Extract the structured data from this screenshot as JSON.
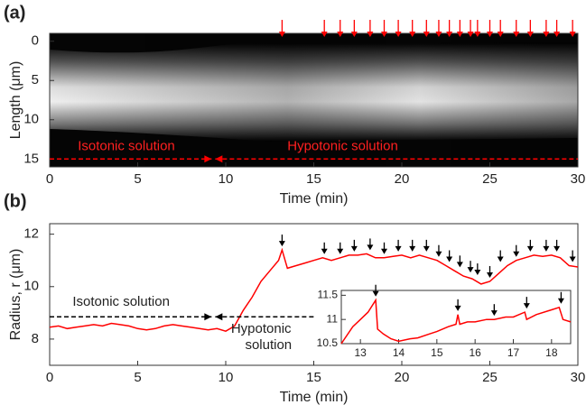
{
  "chart_data": [
    {
      "type": "image",
      "panel_label": "(a)",
      "xlabel": "Time (min)",
      "ylabel": "Length (μm)",
      "xlim": [
        0,
        30
      ],
      "xticks": [
        0,
        5,
        10,
        15,
        20,
        25,
        30
      ],
      "ylim": [
        -1,
        16
      ],
      "yticks": [
        0,
        5,
        10,
        15
      ],
      "y_reversed": true,
      "arrows": {
        "color": "#ff0000",
        "x": [
          13.2,
          15.6,
          16.5,
          17.3,
          18.2,
          19.0,
          19.8,
          20.6,
          21.4,
          22.1,
          22.7,
          23.3,
          23.9,
          24.3,
          25.0,
          25.6,
          26.5,
          27.3,
          28.2,
          28.8,
          29.7
        ]
      },
      "divider": {
        "y": 15,
        "x": 9.3,
        "color": "#ff0000"
      },
      "annotations": [
        "Isotonic solution",
        "Hypotonic solution"
      ]
    },
    {
      "type": "line",
      "panel_label": "(b)",
      "xlabel": "Time (min)",
      "ylabel": "Radius, r (μm)",
      "xlim": [
        0,
        30
      ],
      "xticks": [
        0,
        5,
        10,
        15,
        20,
        25,
        30
      ],
      "ylim": [
        7,
        12.4
      ],
      "yticks": [
        8,
        10,
        12
      ],
      "color": "#ff0000",
      "x": [
        0,
        0.5,
        1,
        1.5,
        2,
        2.5,
        3,
        3.5,
        4,
        4.5,
        5,
        5.5,
        6,
        6.5,
        7,
        7.5,
        8,
        8.5,
        9,
        9.5,
        10,
        10.5,
        11,
        11.5,
        12,
        12.5,
        13,
        13.2,
        13.5,
        14,
        14.5,
        15,
        15.5,
        16,
        16.5,
        17,
        17.5,
        18,
        18.5,
        19,
        19.5,
        20,
        20.5,
        21,
        21.5,
        22,
        22.5,
        23,
        23.5,
        24,
        24.5,
        25,
        25.5,
        26,
        26.5,
        27,
        27.5,
        28,
        28.5,
        29,
        29.5,
        30
      ],
      "values": [
        8.45,
        8.5,
        8.4,
        8.45,
        8.5,
        8.55,
        8.5,
        8.6,
        8.55,
        8.5,
        8.4,
        8.35,
        8.4,
        8.5,
        8.55,
        8.5,
        8.45,
        8.4,
        8.35,
        8.4,
        8.3,
        8.5,
        9.1,
        9.6,
        10.2,
        10.6,
        11.0,
        11.4,
        10.7,
        10.8,
        10.9,
        11.0,
        11.1,
        11.0,
        11.1,
        11.2,
        11.2,
        11.25,
        11.1,
        11.1,
        11.15,
        11.2,
        11.1,
        11.2,
        11.1,
        11.0,
        10.8,
        10.6,
        10.4,
        10.3,
        10.1,
        10.2,
        10.5,
        10.8,
        11.0,
        11.1,
        11.2,
        11.15,
        11.2,
        11.1,
        10.8,
        10.75
      ],
      "arrows": {
        "color": "#000000",
        "x": [
          13.2,
          15.6,
          16.5,
          17.3,
          18.2,
          19.0,
          19.8,
          20.6,
          21.4,
          22.1,
          22.7,
          23.3,
          23.9,
          24.3,
          25.0,
          25.6,
          26.5,
          27.3,
          28.2,
          28.8,
          29.7
        ]
      },
      "divider": {
        "y": 8.85,
        "x": 9.3,
        "color": "#000000",
        "x_end": 15
      },
      "annotations": [
        "Isotonic solution",
        "Hypotonic",
        "solution"
      ]
    },
    {
      "type": "line",
      "inset": true,
      "color": "#ff0000",
      "xlim": [
        12.5,
        18.5
      ],
      "xticks": [
        13,
        14,
        15,
        16,
        17,
        18
      ],
      "ylim": [
        10.5,
        11.6
      ],
      "yticks": [
        10.5,
        11,
        11.5
      ],
      "x": [
        12.5,
        12.8,
        13,
        13.2,
        13.4,
        13.45,
        13.6,
        13.8,
        14,
        14.3,
        14.5,
        14.8,
        15,
        15.3,
        15.5,
        15.55,
        15.6,
        15.8,
        16,
        16.3,
        16.5,
        16.8,
        17,
        17.3,
        17.35,
        17.6,
        18,
        18.2,
        18.3,
        18.5
      ],
      "values": [
        10.5,
        10.85,
        11.0,
        11.15,
        11.4,
        10.8,
        10.7,
        10.6,
        10.55,
        10.6,
        10.62,
        10.7,
        10.75,
        10.85,
        10.9,
        11.1,
        10.9,
        10.95,
        10.95,
        11.0,
        11.0,
        11.05,
        11.05,
        11.15,
        11.0,
        11.1,
        11.2,
        11.25,
        11.0,
        10.95
      ],
      "arrows": {
        "color": "#000000",
        "x": [
          13.4,
          15.55,
          16.5,
          17.35,
          18.25
        ]
      }
    }
  ]
}
